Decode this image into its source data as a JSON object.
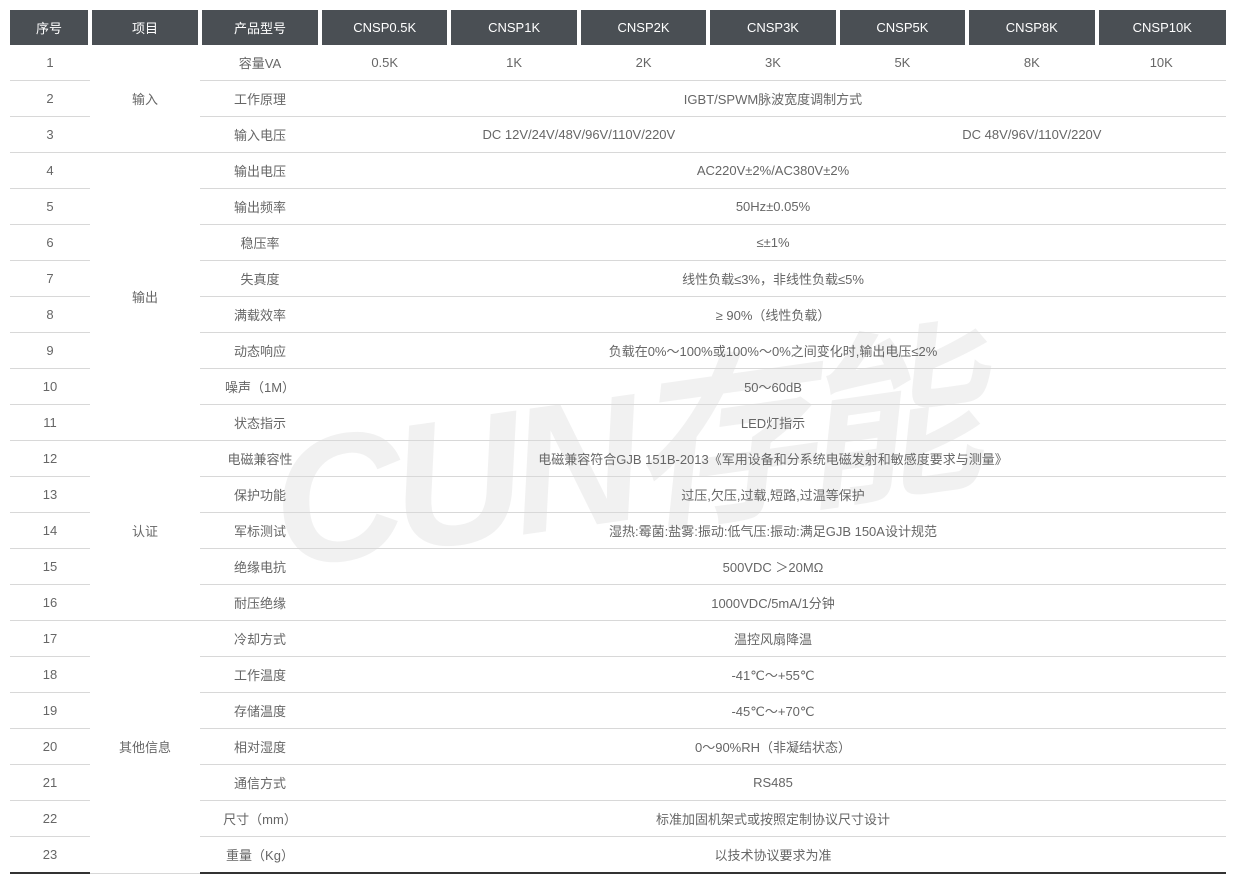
{
  "watermark": "CUN存能",
  "colors": {
    "header_bg": "#4a4f54",
    "header_text": "#ffffff",
    "cell_text": "#666666",
    "border": "#d8d8d8",
    "thick_border": "#333333",
    "watermark": "rgba(200,200,200,0.25)"
  },
  "headers": [
    "序号",
    "项目",
    "产品型号",
    "CNSP0.5K",
    "CNSP1K",
    "CNSP2K",
    "CNSP3K",
    "CNSP5K",
    "CNSP8K",
    "CNSP10K"
  ],
  "categories": {
    "input": "输入",
    "output": "输出",
    "cert": "认证",
    "other": "其他信息"
  },
  "rows": {
    "r1": {
      "seq": "1",
      "spec": "容量VA",
      "v1": "0.5K",
      "v2": "1K",
      "v3": "2K",
      "v4": "3K",
      "v5": "5K",
      "v6": "8K",
      "v7": "10K"
    },
    "r2": {
      "seq": "2",
      "spec": "工作原理",
      "merged": "IGBT/SPWM脉波宽度调制方式"
    },
    "r3": {
      "seq": "3",
      "spec": "输入电压",
      "left": "DC 12V/24V/48V/96V/110V/220V",
      "right": "DC 48V/96V/110V/220V"
    },
    "r4": {
      "seq": "4",
      "spec": "输出电压",
      "merged": "AC220V±2%/AC380V±2%"
    },
    "r5": {
      "seq": "5",
      "spec": "输出频率",
      "merged": "50Hz±0.05%"
    },
    "r6": {
      "seq": "6",
      "spec": "稳压率",
      "merged": "≤±1%"
    },
    "r7": {
      "seq": "7",
      "spec": "失真度",
      "merged": "线性负载≤3%，非线性负载≤5%"
    },
    "r8": {
      "seq": "8",
      "spec": "满载效率",
      "merged": "≥ 90%（线性负载）"
    },
    "r9": {
      "seq": "9",
      "spec": "动态响应",
      "merged": "负载在0%～100%或100%～0%之间变化时,输出电压≤2%"
    },
    "r10": {
      "seq": "10",
      "spec": "噪声（1M）",
      "merged": "50～60dB"
    },
    "r11": {
      "seq": "11",
      "spec": "状态指示",
      "merged": "LED灯指示"
    },
    "r12": {
      "seq": "12",
      "spec": "电磁兼容性",
      "merged": "电磁兼容符合GJB 151B-2013《军用设备和分系统电磁发射和敏感度要求与测量》"
    },
    "r13": {
      "seq": "13",
      "spec": "保护功能",
      "merged": "过压,欠压,过载,短路,过温等保护"
    },
    "r14": {
      "seq": "14",
      "spec": "军标测试",
      "merged": "湿热:霉菌:盐雾:振动:低气压:振动:满足GJB 150A设计规范"
    },
    "r15": {
      "seq": "15",
      "spec": "绝缘电抗",
      "merged": "500VDC  ＞20MΩ"
    },
    "r16": {
      "seq": "16",
      "spec": "耐压绝缘",
      "merged": "1000VDC/5mA/1分钟"
    },
    "r17": {
      "seq": "17",
      "spec": "冷却方式",
      "merged": "温控风扇降温"
    },
    "r18": {
      "seq": "18",
      "spec": "工作温度",
      "merged": "-41℃～+55℃"
    },
    "r19": {
      "seq": "19",
      "spec": "存储温度",
      "merged": "-45℃～+70℃"
    },
    "r20": {
      "seq": "20",
      "spec": "相对湿度",
      "merged": "0～90%RH（非凝结状态）"
    },
    "r21": {
      "seq": "21",
      "spec": "通信方式",
      "merged": "RS485"
    },
    "r22": {
      "seq": "22",
      "spec": "尺寸（mm）",
      "merged": "标准加固机架式或按照定制协议尺寸设计"
    },
    "r23": {
      "seq": "23",
      "spec": "重量（Kg）",
      "merged": "以技术协议要求为准"
    }
  }
}
